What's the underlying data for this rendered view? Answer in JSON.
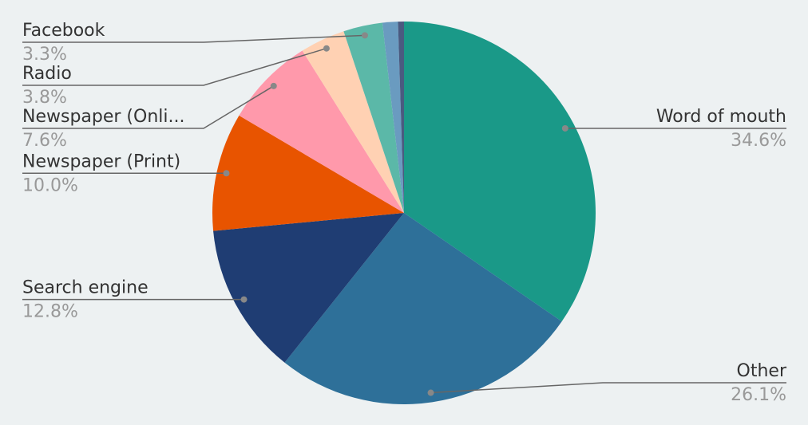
{
  "chart_data": {
    "type": "pie",
    "categories": [
      "Word of mouth",
      "Other",
      "Search engine",
      "Newspaper (Print)",
      "Newspaper (Onli...",
      "Radio",
      "Facebook",
      null,
      null
    ],
    "values": [
      34.6,
      26.1,
      12.8,
      10.0,
      7.6,
      3.8,
      3.3,
      1.3,
      0.5
    ],
    "value_labels": [
      "34.6%",
      "26.1%",
      "12.8%",
      "10.0%",
      "7.6%",
      "3.8%",
      "3.3%",
      null,
      null
    ],
    "colors": [
      "#1a9988",
      "#2e7099",
      "#1f3d73",
      "#e85400",
      "#ff99ab",
      "#ffd1b3",
      "#5bb8a8",
      "#6a9bc0",
      "#4a5a80"
    ]
  }
}
